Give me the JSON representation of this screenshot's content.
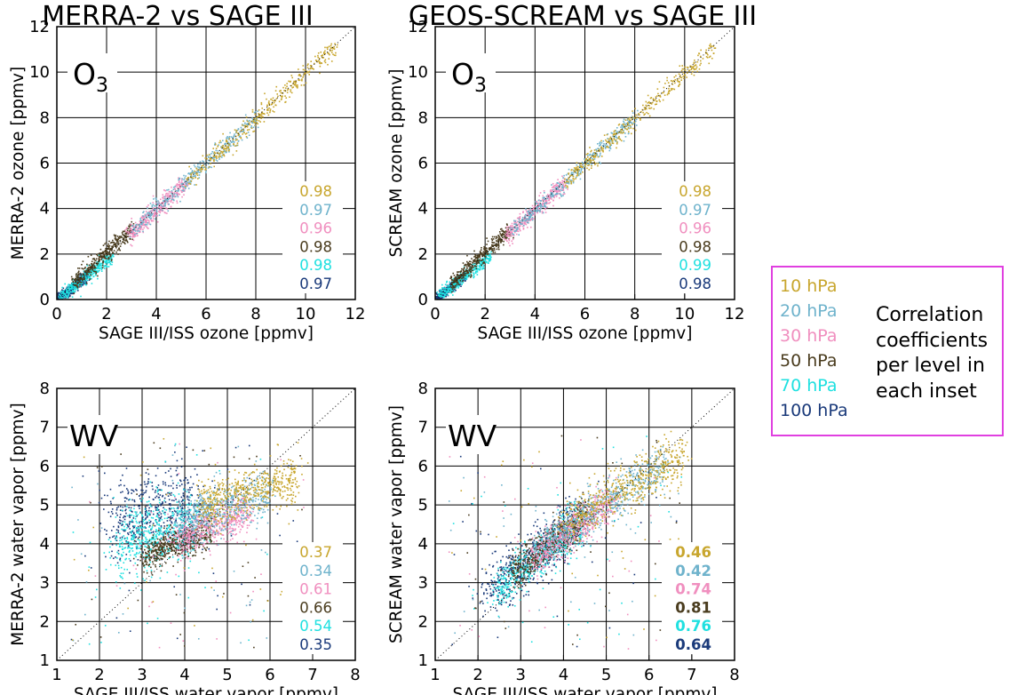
{
  "panel_titles": [
    "MERRA-2 vs SAGE III",
    "GEOS-SCREAM vs SAGE III"
  ],
  "levels": [
    "10 hPa",
    "20 hPa",
    "30 hPa",
    "50 hPa",
    "70 hPa",
    "100 hPa"
  ],
  "level_colors": [
    "#c8a62e",
    "#6fb3cc",
    "#f08fbf",
    "#4a3c1e",
    "#1fe0e0",
    "#1a3a7a"
  ],
  "legend_note": [
    "Correlation",
    "coefficients",
    "per level in",
    "each inset"
  ],
  "legend_border_color": "#e040e0",
  "chart_data": [
    {
      "type": "scatter",
      "title": "MERRA-2 vs SAGE III",
      "species_label": "O3",
      "xlabel": "SAGE III/ISS ozone [ppmv]",
      "ylabel": "MERRA-2 ozone [ppmv]",
      "xlim": [
        0,
        12
      ],
      "ylim": [
        0,
        12
      ],
      "xticks": [
        0,
        2,
        4,
        6,
        8,
        10,
        12
      ],
      "yticks": [
        0,
        2,
        4,
        6,
        8,
        10,
        12
      ],
      "grid": true,
      "one_to_one_line": true,
      "series": [
        {
          "name": "10 hPa",
          "x_range": [
            5.2,
            11.2
          ],
          "fit_slope": 1.0,
          "fit_intercept": 0.0,
          "spread": 0.22,
          "correlation": "0.98"
        },
        {
          "name": "20 hPa",
          "x_range": [
            3.0,
            8.0
          ],
          "fit_slope": 1.0,
          "fit_intercept": 0.0,
          "spread": 0.2,
          "correlation": "0.97"
        },
        {
          "name": "30 hPa",
          "x_range": [
            2.8,
            5.2
          ],
          "fit_slope": 1.0,
          "fit_intercept": 0.0,
          "spread": 0.2,
          "correlation": "0.96"
        },
        {
          "name": "50 hPa",
          "x_range": [
            0.6,
            3.0
          ],
          "fit_slope": 1.0,
          "fit_intercept": 0.1,
          "spread": 0.2,
          "correlation": "0.98"
        },
        {
          "name": "70 hPa",
          "x_range": [
            0.1,
            2.2
          ],
          "fit_slope": 0.85,
          "fit_intercept": 0.05,
          "spread": 0.15,
          "correlation": "0.98"
        },
        {
          "name": "100 hPa",
          "x_range": [
            0.0,
            1.2
          ],
          "fit_slope": 0.85,
          "fit_intercept": 0.05,
          "spread": 0.12,
          "correlation": "0.97"
        }
      ],
      "bold_correlations": false
    },
    {
      "type": "scatter",
      "title": "GEOS-SCREAM vs SAGE III",
      "species_label": "O3",
      "xlabel": "SAGE III/ISS ozone [ppmv]",
      "ylabel": "SCREAM ozone [ppmv]",
      "xlim": [
        0,
        12
      ],
      "ylim": [
        0,
        12
      ],
      "xticks": [
        0,
        2,
        4,
        6,
        8,
        10,
        12
      ],
      "yticks": [
        0,
        2,
        4,
        6,
        8,
        10,
        12
      ],
      "grid": true,
      "one_to_one_line": true,
      "series": [
        {
          "name": "10 hPa",
          "x_range": [
            5.2,
            11.2
          ],
          "fit_slope": 1.0,
          "fit_intercept": 0.0,
          "spread": 0.2,
          "correlation": "0.98"
        },
        {
          "name": "20 hPa",
          "x_range": [
            3.0,
            8.0
          ],
          "fit_slope": 1.0,
          "fit_intercept": 0.0,
          "spread": 0.18,
          "correlation": "0.97"
        },
        {
          "name": "30 hPa",
          "x_range": [
            2.8,
            5.2
          ],
          "fit_slope": 1.0,
          "fit_intercept": 0.0,
          "spread": 0.18,
          "correlation": "0.96"
        },
        {
          "name": "50 hPa",
          "x_range": [
            0.6,
            3.0
          ],
          "fit_slope": 1.0,
          "fit_intercept": 0.1,
          "spread": 0.18,
          "correlation": "0.98"
        },
        {
          "name": "70 hPa",
          "x_range": [
            0.1,
            2.2
          ],
          "fit_slope": 0.85,
          "fit_intercept": 0.05,
          "spread": 0.14,
          "correlation": "0.99"
        },
        {
          "name": "100 hPa",
          "x_range": [
            0.0,
            1.2
          ],
          "fit_slope": 0.85,
          "fit_intercept": 0.05,
          "spread": 0.1,
          "correlation": "0.98"
        }
      ],
      "bold_correlations": false
    },
    {
      "type": "scatter",
      "title": "",
      "species_label": "WV",
      "xlabel": "SAGE III/ISS water vapor [ppmv]",
      "ylabel": "MERRA-2 water vapor [ppmv]",
      "xlim": [
        1,
        8
      ],
      "ylim": [
        1,
        8
      ],
      "xticks": [
        1,
        2,
        3,
        4,
        5,
        6,
        7,
        8
      ],
      "yticks": [
        1,
        2,
        3,
        4,
        5,
        6,
        7,
        8
      ],
      "grid": true,
      "one_to_one_line": true,
      "series": [
        {
          "name": "10 hPa",
          "x_range": [
            4.3,
            6.6
          ],
          "fit_slope": 0.3,
          "fit_intercept": 3.7,
          "spread": 0.3,
          "correlation": "0.37"
        },
        {
          "name": "20 hPa",
          "x_range": [
            3.8,
            6.0
          ],
          "fit_slope": 0.35,
          "fit_intercept": 3.2,
          "spread": 0.3,
          "correlation": "0.34"
        },
        {
          "name": "30 hPa",
          "x_range": [
            3.8,
            5.5
          ],
          "fit_slope": 0.4,
          "fit_intercept": 2.6,
          "spread": 0.25,
          "correlation": "0.61"
        },
        {
          "name": "50 hPa",
          "x_range": [
            3.0,
            4.6
          ],
          "fit_slope": 0.4,
          "fit_intercept": 2.5,
          "spread": 0.2,
          "correlation": "0.66"
        },
        {
          "name": "70 hPa",
          "x_range": [
            2.4,
            4.2
          ],
          "fit_slope": 0.3,
          "fit_intercept": 3.3,
          "spread": 0.45,
          "correlation": "0.54"
        },
        {
          "name": "100 hPa",
          "x_range": [
            2.3,
            4.3
          ],
          "fit_slope": 0.2,
          "fit_intercept": 4.2,
          "spread": 0.55,
          "correlation": "0.35"
        }
      ],
      "bold_correlations": false
    },
    {
      "type": "scatter",
      "title": "",
      "species_label": "WV",
      "xlabel": "SAGE III/ISS water vapor [ppmv]",
      "ylabel": "SCREAM water vapor [ppmv]",
      "xlim": [
        1,
        8
      ],
      "ylim": [
        1,
        8
      ],
      "xticks": [
        1,
        2,
        3,
        4,
        5,
        6,
        7,
        8
      ],
      "yticks": [
        1,
        2,
        3,
        4,
        5,
        6,
        7,
        8
      ],
      "grid": true,
      "one_to_one_line": true,
      "series": [
        {
          "name": "10 hPa",
          "x_range": [
            4.0,
            6.8
          ],
          "fit_slope": 0.65,
          "fit_intercept": 1.9,
          "spread": 0.3,
          "correlation": "0.46"
        },
        {
          "name": "20 hPa",
          "x_range": [
            3.4,
            6.3
          ],
          "fit_slope": 0.7,
          "fit_intercept": 1.6,
          "spread": 0.3,
          "correlation": "0.42"
        },
        {
          "name": "30 hPa",
          "x_range": [
            3.3,
            5.2
          ],
          "fit_slope": 0.8,
          "fit_intercept": 1.0,
          "spread": 0.25,
          "correlation": "0.74"
        },
        {
          "name": "50 hPa",
          "x_range": [
            2.8,
            4.6
          ],
          "fit_slope": 0.9,
          "fit_intercept": 0.7,
          "spread": 0.22,
          "correlation": "0.81"
        },
        {
          "name": "70 hPa",
          "x_range": [
            2.4,
            4.4
          ],
          "fit_slope": 0.9,
          "fit_intercept": 0.6,
          "spread": 0.28,
          "correlation": "0.76"
        },
        {
          "name": "100 hPa",
          "x_range": [
            2.2,
            4.4
          ],
          "fit_slope": 0.85,
          "fit_intercept": 0.9,
          "spread": 0.35,
          "correlation": "0.64"
        }
      ],
      "bold_correlations": true
    }
  ]
}
